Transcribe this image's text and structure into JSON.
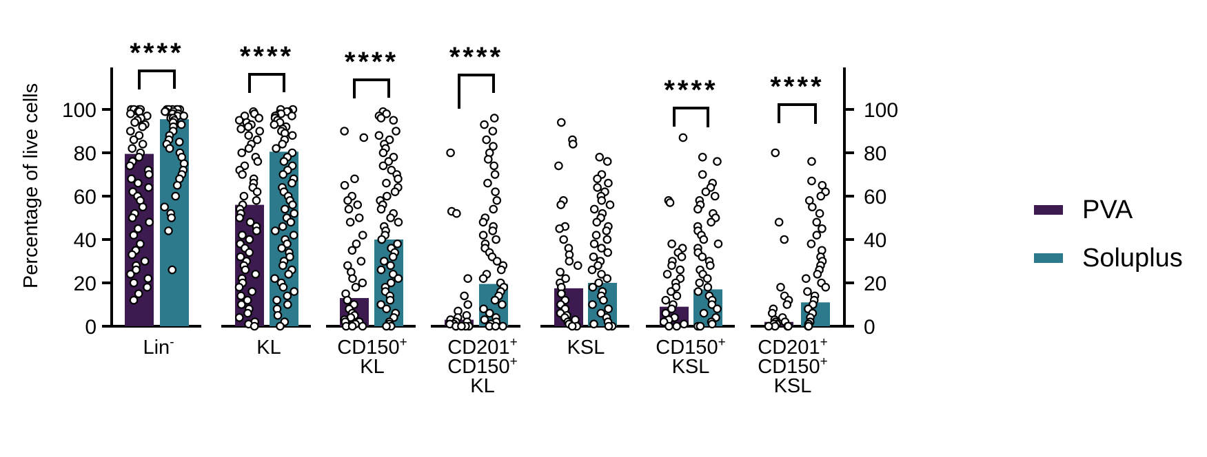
{
  "chart_data": {
    "type": "bar",
    "ylabel": "Percentage of live cells",
    "ylim": [
      0,
      120
    ],
    "yticks": [
      "0",
      "20",
      "40",
      "60",
      "80",
      "100"
    ],
    "right_axis_ticks": [
      "0",
      "20",
      "40",
      "60",
      "80",
      "100"
    ],
    "groups": [
      {
        "label_lines": [
          {
            "text": "Lin",
            "sup": "-"
          }
        ],
        "pva": 79.5,
        "soluplus": 95.5,
        "significance": "****",
        "pva_points": [
          100,
          100,
          100,
          100,
          99,
          99,
          98,
          97,
          96,
          95,
          94,
          93,
          92,
          90,
          88,
          86,
          84,
          82,
          80,
          78,
          76,
          74,
          72,
          70,
          68,
          66,
          64,
          62,
          60,
          58,
          55,
          52,
          50,
          48,
          45,
          42,
          38,
          35,
          33,
          30,
          28,
          26,
          24,
          22,
          20,
          18,
          15,
          12
        ],
        "soluplus_points": [
          100,
          100,
          100,
          100,
          100,
          100,
          99,
          99,
          99,
          98,
          98,
          97,
          97,
          96,
          96,
          95,
          94,
          93,
          92,
          90,
          88,
          86,
          85,
          84,
          82,
          80,
          78,
          75,
          72,
          70,
          68,
          65,
          60,
          55,
          52,
          50,
          44,
          26
        ]
      },
      {
        "label_lines": [
          {
            "text": "KL",
            "sup": ""
          }
        ],
        "pva": 56,
        "soluplus": 80.5,
        "significance": "****",
        "pva_points": [
          99,
          98,
          97,
          96,
          95,
          94,
          93,
          92,
          91,
          90,
          88,
          86,
          84,
          82,
          80,
          78,
          76,
          74,
          72,
          70,
          68,
          66,
          64,
          62,
          60,
          58,
          56,
          54,
          52,
          50,
          48,
          46,
          44,
          42,
          40,
          38,
          36,
          34,
          32,
          30,
          28,
          26,
          24,
          22,
          20,
          18,
          16,
          14,
          12,
          10,
          8,
          6,
          4,
          2,
          1,
          0
        ],
        "soluplus_points": [
          100,
          100,
          99,
          99,
          98,
          98,
          97,
          97,
          96,
          96,
          95,
          94,
          93,
          92,
          91,
          90,
          89,
          88,
          86,
          84,
          82,
          80,
          78,
          76,
          74,
          72,
          70,
          68,
          66,
          64,
          62,
          60,
          58,
          56,
          54,
          52,
          50,
          48,
          46,
          44,
          42,
          40,
          38,
          36,
          34,
          32,
          30,
          28,
          26,
          24,
          22,
          20,
          18,
          16,
          14,
          12,
          10,
          8,
          5,
          2,
          0
        ]
      },
      {
        "label_lines": [
          {
            "text": "CD150",
            "sup": "+"
          },
          {
            "text": "KL",
            "sup": ""
          }
        ],
        "pva": 13,
        "soluplus": 40,
        "significance": "****",
        "pva_points": [
          90,
          87,
          68,
          65,
          60,
          58,
          56,
          54,
          50,
          48,
          42,
          38,
          35,
          30,
          28,
          25,
          22,
          20,
          18,
          15,
          12,
          10,
          8,
          6,
          5,
          4,
          3,
          2,
          2,
          1,
          1,
          0,
          0,
          0
        ],
        "soluplus_points": [
          99,
          98,
          97,
          96,
          95,
          90,
          88,
          86,
          84,
          82,
          80,
          78,
          76,
          74,
          72,
          70,
          68,
          66,
          64,
          62,
          60,
          58,
          56,
          54,
          52,
          50,
          48,
          46,
          44,
          42,
          40,
          38,
          36,
          34,
          32,
          30,
          28,
          26,
          24,
          22,
          20,
          18,
          16,
          14,
          12,
          10,
          8,
          6,
          4,
          2,
          1,
          0,
          0
        ]
      },
      {
        "label_lines": [
          {
            "text": "CD201",
            "sup": "+"
          },
          {
            "text": "CD150",
            "sup": "+"
          },
          {
            "text": "KL",
            "sup": ""
          }
        ],
        "pva": 3,
        "soluplus": 19.5,
        "significance": "****",
        "pva_points": [
          80,
          53,
          52,
          22,
          14,
          10,
          7,
          5,
          4,
          3,
          2,
          2,
          1,
          1,
          1,
          0,
          0,
          0,
          0,
          0
        ],
        "soluplus_points": [
          96,
          93,
          90,
          86,
          83,
          80,
          77,
          74,
          70,
          66,
          62,
          58,
          54,
          50,
          48,
          46,
          44,
          42,
          40,
          38,
          36,
          34,
          32,
          30,
          28,
          26,
          24,
          22,
          20,
          18,
          16,
          14,
          12,
          10,
          8,
          6,
          4,
          3,
          2,
          1,
          0,
          0,
          0
        ]
      },
      {
        "label_lines": [
          {
            "text": "KSL",
            "sup": ""
          }
        ],
        "pva": 17.5,
        "soluplus": 20,
        "significance": "",
        "pva_points": [
          94,
          86,
          84,
          74,
          58,
          56,
          46,
          45,
          40,
          36,
          33,
          30,
          28,
          25,
          22,
          20,
          18,
          15,
          12,
          10,
          8,
          6,
          5,
          4,
          3,
          2,
          1,
          0,
          0
        ],
        "soluplus_points": [
          78,
          76,
          70,
          68,
          66,
          64,
          62,
          60,
          58,
          56,
          54,
          52,
          50,
          48,
          46,
          44,
          42,
          40,
          38,
          36,
          34,
          32,
          30,
          28,
          26,
          24,
          22,
          20,
          18,
          16,
          14,
          12,
          10,
          8,
          6,
          4,
          2,
          1,
          0,
          0
        ]
      },
      {
        "label_lines": [
          {
            "text": "CD150",
            "sup": "+"
          },
          {
            "text": "KSL",
            "sup": ""
          }
        ],
        "pva": 9,
        "soluplus": 17,
        "significance": "****",
        "pva_points": [
          87,
          58,
          57,
          38,
          36,
          34,
          32,
          30,
          28,
          26,
          24,
          22,
          20,
          18,
          16,
          14,
          12,
          10,
          8,
          6,
          4,
          3,
          2,
          1,
          0,
          0
        ],
        "soluplus_points": [
          78,
          76,
          70,
          66,
          64,
          62,
          60,
          58,
          56,
          54,
          52,
          50,
          48,
          46,
          44,
          42,
          40,
          38,
          36,
          34,
          32,
          30,
          28,
          26,
          24,
          22,
          20,
          18,
          16,
          14,
          12,
          10,
          8,
          6,
          4,
          2,
          1,
          0,
          0
        ]
      },
      {
        "label_lines": [
          {
            "text": "CD201",
            "sup": "+"
          },
          {
            "text": "CD150",
            "sup": "+"
          },
          {
            "text": "KSL",
            "sup": ""
          }
        ],
        "pva": 2,
        "soluplus": 11,
        "significance": "****",
        "pva_points": [
          80,
          48,
          40,
          18,
          14,
          12,
          10,
          8,
          6,
          4,
          3,
          2,
          2,
          1,
          1,
          0,
          0,
          0,
          0
        ],
        "soluplus_points": [
          76,
          67,
          65,
          62,
          60,
          58,
          55,
          52,
          48,
          45,
          42,
          38,
          35,
          32,
          30,
          28,
          26,
          24,
          22,
          20,
          18,
          16,
          14,
          12,
          10,
          8,
          6,
          4,
          2,
          1,
          0,
          0
        ]
      }
    ],
    "series": [
      {
        "name": "PVA",
        "color": "#3d1a4f"
      },
      {
        "name": "Soluplus",
        "color": "#2c7a8c"
      }
    ],
    "legend_position": "right"
  }
}
